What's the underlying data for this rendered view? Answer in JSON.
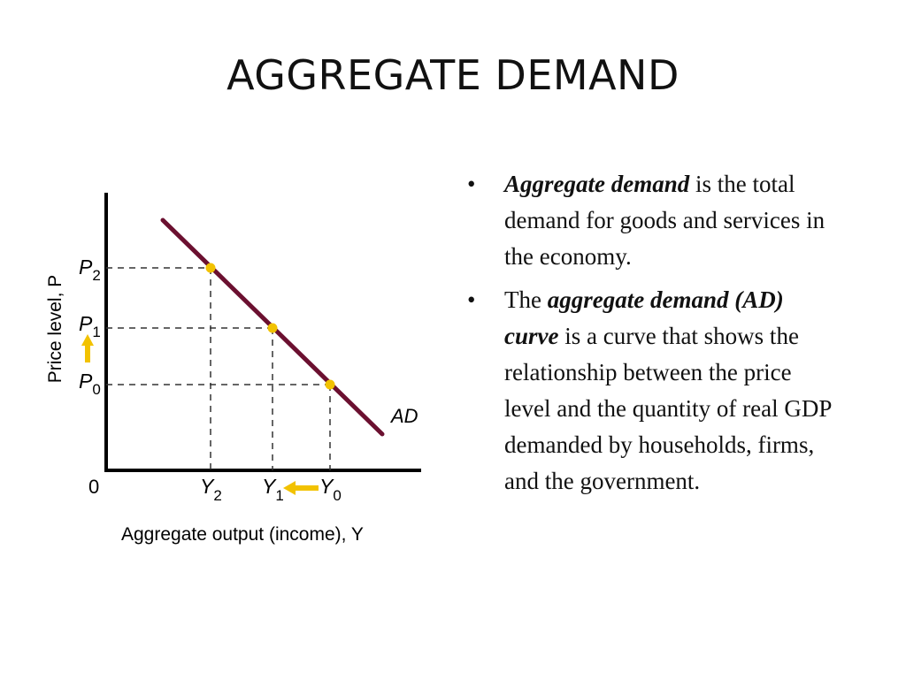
{
  "title": "AGGREGATE DEMAND",
  "diagram": {
    "y_axis_label": "Price level, P",
    "x_axis_label": "Aggregate output (income), Y",
    "origin_label": "0",
    "curve_label": "AD",
    "price_labels": [
      {
        "base": "P",
        "sub": "2"
      },
      {
        "base": "P",
        "sub": "1"
      },
      {
        "base": "P",
        "sub": "0"
      }
    ],
    "output_labels": [
      {
        "base": "Y",
        "sub": "2"
      },
      {
        "base": "Y",
        "sub": "1"
      },
      {
        "base": "Y",
        "sub": "0"
      }
    ],
    "colors": {
      "curve": "#6b1030",
      "point": "#f2c200",
      "arrow": "#f2c200",
      "axis": "#000000"
    }
  },
  "bullets": [
    {
      "term": "Aggregate demand",
      "rest": " is the total demand for goods and services in the economy."
    },
    {
      "pre": "The ",
      "term": "aggregate demand (AD) curve",
      "rest": " is a curve that shows the relationship between the price level and the quantity of real GDP demanded by households, firms, and the government."
    }
  ]
}
